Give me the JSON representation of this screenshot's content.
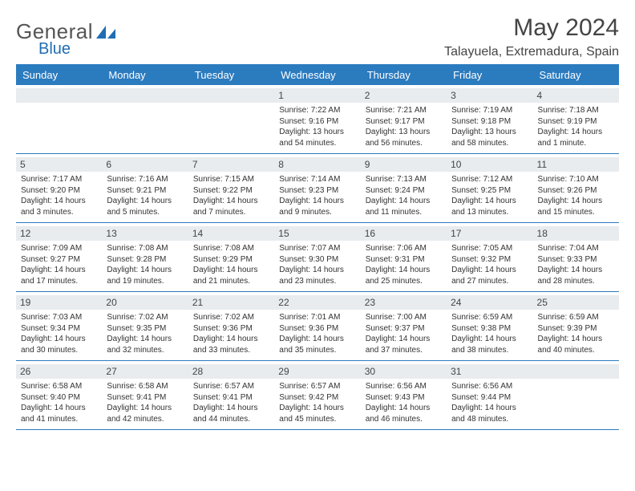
{
  "brand": {
    "name": "General",
    "accent": "Blue"
  },
  "title": "May 2024",
  "location": "Talayuela, Extremadura, Spain",
  "colors": {
    "header_bg": "#2b7bbf",
    "header_text": "#ffffff",
    "daynum_bg": "#e8ecef",
    "text": "#333333",
    "logo_gray": "#666666",
    "logo_blue": "#1f6db3"
  },
  "daysOfWeek": [
    "Sunday",
    "Monday",
    "Tuesday",
    "Wednesday",
    "Thursday",
    "Friday",
    "Saturday"
  ],
  "weeks": [
    [
      {
        "n": "",
        "sr": "",
        "ss": "",
        "dl": ""
      },
      {
        "n": "",
        "sr": "",
        "ss": "",
        "dl": ""
      },
      {
        "n": "",
        "sr": "",
        "ss": "",
        "dl": ""
      },
      {
        "n": "1",
        "sr": "Sunrise: 7:22 AM",
        "ss": "Sunset: 9:16 PM",
        "dl": "Daylight: 13 hours and 54 minutes."
      },
      {
        "n": "2",
        "sr": "Sunrise: 7:21 AM",
        "ss": "Sunset: 9:17 PM",
        "dl": "Daylight: 13 hours and 56 minutes."
      },
      {
        "n": "3",
        "sr": "Sunrise: 7:19 AM",
        "ss": "Sunset: 9:18 PM",
        "dl": "Daylight: 13 hours and 58 minutes."
      },
      {
        "n": "4",
        "sr": "Sunrise: 7:18 AM",
        "ss": "Sunset: 9:19 PM",
        "dl": "Daylight: 14 hours and 1 minute."
      }
    ],
    [
      {
        "n": "5",
        "sr": "Sunrise: 7:17 AM",
        "ss": "Sunset: 9:20 PM",
        "dl": "Daylight: 14 hours and 3 minutes."
      },
      {
        "n": "6",
        "sr": "Sunrise: 7:16 AM",
        "ss": "Sunset: 9:21 PM",
        "dl": "Daylight: 14 hours and 5 minutes."
      },
      {
        "n": "7",
        "sr": "Sunrise: 7:15 AM",
        "ss": "Sunset: 9:22 PM",
        "dl": "Daylight: 14 hours and 7 minutes."
      },
      {
        "n": "8",
        "sr": "Sunrise: 7:14 AM",
        "ss": "Sunset: 9:23 PM",
        "dl": "Daylight: 14 hours and 9 minutes."
      },
      {
        "n": "9",
        "sr": "Sunrise: 7:13 AM",
        "ss": "Sunset: 9:24 PM",
        "dl": "Daylight: 14 hours and 11 minutes."
      },
      {
        "n": "10",
        "sr": "Sunrise: 7:12 AM",
        "ss": "Sunset: 9:25 PM",
        "dl": "Daylight: 14 hours and 13 minutes."
      },
      {
        "n": "11",
        "sr": "Sunrise: 7:10 AM",
        "ss": "Sunset: 9:26 PM",
        "dl": "Daylight: 14 hours and 15 minutes."
      }
    ],
    [
      {
        "n": "12",
        "sr": "Sunrise: 7:09 AM",
        "ss": "Sunset: 9:27 PM",
        "dl": "Daylight: 14 hours and 17 minutes."
      },
      {
        "n": "13",
        "sr": "Sunrise: 7:08 AM",
        "ss": "Sunset: 9:28 PM",
        "dl": "Daylight: 14 hours and 19 minutes."
      },
      {
        "n": "14",
        "sr": "Sunrise: 7:08 AM",
        "ss": "Sunset: 9:29 PM",
        "dl": "Daylight: 14 hours and 21 minutes."
      },
      {
        "n": "15",
        "sr": "Sunrise: 7:07 AM",
        "ss": "Sunset: 9:30 PM",
        "dl": "Daylight: 14 hours and 23 minutes."
      },
      {
        "n": "16",
        "sr": "Sunrise: 7:06 AM",
        "ss": "Sunset: 9:31 PM",
        "dl": "Daylight: 14 hours and 25 minutes."
      },
      {
        "n": "17",
        "sr": "Sunrise: 7:05 AM",
        "ss": "Sunset: 9:32 PM",
        "dl": "Daylight: 14 hours and 27 minutes."
      },
      {
        "n": "18",
        "sr": "Sunrise: 7:04 AM",
        "ss": "Sunset: 9:33 PM",
        "dl": "Daylight: 14 hours and 28 minutes."
      }
    ],
    [
      {
        "n": "19",
        "sr": "Sunrise: 7:03 AM",
        "ss": "Sunset: 9:34 PM",
        "dl": "Daylight: 14 hours and 30 minutes."
      },
      {
        "n": "20",
        "sr": "Sunrise: 7:02 AM",
        "ss": "Sunset: 9:35 PM",
        "dl": "Daylight: 14 hours and 32 minutes."
      },
      {
        "n": "21",
        "sr": "Sunrise: 7:02 AM",
        "ss": "Sunset: 9:36 PM",
        "dl": "Daylight: 14 hours and 33 minutes."
      },
      {
        "n": "22",
        "sr": "Sunrise: 7:01 AM",
        "ss": "Sunset: 9:36 PM",
        "dl": "Daylight: 14 hours and 35 minutes."
      },
      {
        "n": "23",
        "sr": "Sunrise: 7:00 AM",
        "ss": "Sunset: 9:37 PM",
        "dl": "Daylight: 14 hours and 37 minutes."
      },
      {
        "n": "24",
        "sr": "Sunrise: 6:59 AM",
        "ss": "Sunset: 9:38 PM",
        "dl": "Daylight: 14 hours and 38 minutes."
      },
      {
        "n": "25",
        "sr": "Sunrise: 6:59 AM",
        "ss": "Sunset: 9:39 PM",
        "dl": "Daylight: 14 hours and 40 minutes."
      }
    ],
    [
      {
        "n": "26",
        "sr": "Sunrise: 6:58 AM",
        "ss": "Sunset: 9:40 PM",
        "dl": "Daylight: 14 hours and 41 minutes."
      },
      {
        "n": "27",
        "sr": "Sunrise: 6:58 AM",
        "ss": "Sunset: 9:41 PM",
        "dl": "Daylight: 14 hours and 42 minutes."
      },
      {
        "n": "28",
        "sr": "Sunrise: 6:57 AM",
        "ss": "Sunset: 9:41 PM",
        "dl": "Daylight: 14 hours and 44 minutes."
      },
      {
        "n": "29",
        "sr": "Sunrise: 6:57 AM",
        "ss": "Sunset: 9:42 PM",
        "dl": "Daylight: 14 hours and 45 minutes."
      },
      {
        "n": "30",
        "sr": "Sunrise: 6:56 AM",
        "ss": "Sunset: 9:43 PM",
        "dl": "Daylight: 14 hours and 46 minutes."
      },
      {
        "n": "31",
        "sr": "Sunrise: 6:56 AM",
        "ss": "Sunset: 9:44 PM",
        "dl": "Daylight: 14 hours and 48 minutes."
      },
      {
        "n": "",
        "sr": "",
        "ss": "",
        "dl": ""
      }
    ]
  ]
}
